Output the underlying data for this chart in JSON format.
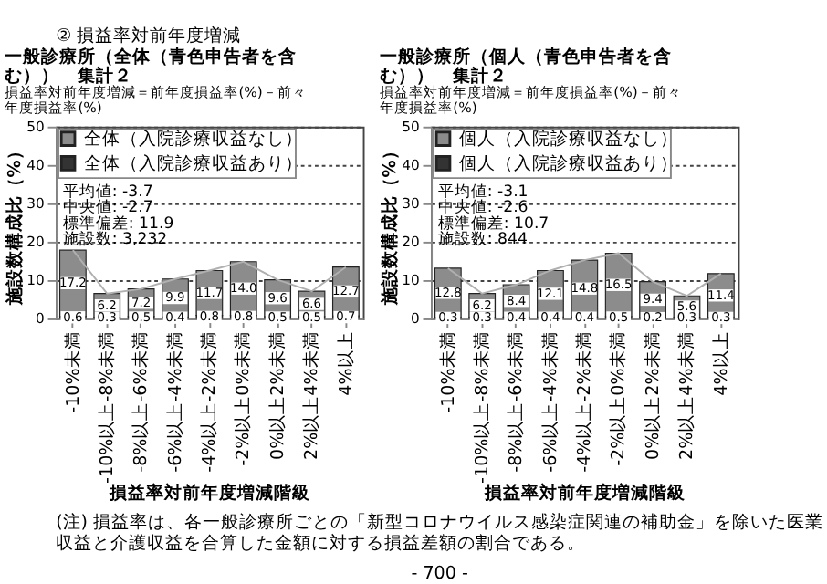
{
  "chart_data": [
    {
      "type": "bar",
      "title": "一般診療所（全体（青色申告者を含む））　集計２",
      "subtitle": "損益率対前年度増減＝前年度損益率(%)－前々年度損益率(%)",
      "xlabel": "損益率対前年度増減階級",
      "ylabel": "施設数構成比（%）",
      "categories": [
        "-10%未満",
        "-10%以上-8%未満",
        "-8%以上-6%未満",
        "-6%以上-4%未満",
        "-4%以上-2%未満",
        "-2%以上0%未満",
        "0%以上2%未満",
        "2%以上4%未満",
        "4%以上"
      ],
      "series": [
        {
          "name": "全体（入院診療収益あり）",
          "color": "#333333",
          "values": [
            0.6,
            0.3,
            0.5,
            0.4,
            0.8,
            0.8,
            0.5,
            0.5,
            0.7
          ],
          "value_labels": [
            "0.6",
            "0.3",
            "0.5",
            "0.4",
            "0.8",
            "0.8",
            "0.5",
            "0.5",
            "0.7"
          ]
        },
        {
          "name": "全体（入院診療収益なし）",
          "color": "#8c8c8c",
          "values": [
            17.2,
            6.2,
            7.2,
            9.9,
            11.7,
            14.0,
            9.6,
            6.6,
            12.7
          ],
          "value_labels": [
            "17.2",
            "6.2",
            "7.2",
            "9.9",
            "11.7",
            "14.0",
            "9.6",
            "6.6",
            "12.7"
          ]
        },
        {
          "type": "line",
          "color": "#b0b0b0",
          "values": [
            17.8,
            6.5,
            7.7,
            10.3,
            12.5,
            14.8,
            10.1,
            7.1,
            13.4
          ]
        }
      ],
      "stacked": true,
      "ylim": [
        0,
        50
      ],
      "yticks": [
        0,
        10,
        20,
        30,
        40,
        50
      ],
      "grid": "y",
      "legend": "top left",
      "annotations": [
        "② 損益率対前年度増減",
        "平均値: -3.7",
        "中央値: -2.7",
        "標準偏差: 11.9",
        "施設数: 3,232"
      ]
    },
    {
      "type": "bar",
      "title": "一般診療所（個人（青色申告者を含む））　集計２",
      "subtitle": "損益率対前年度増減＝前年度損益率(%)－前々年度損益率(%)",
      "xlabel": "損益率対前年度増減階級",
      "ylabel": "施設数構成比（%）",
      "categories": [
        "-10%未満",
        "-10%以上-8%未満",
        "-8%以上-6%未満",
        "-6%以上-4%未満",
        "-4%以上-2%未満",
        "-2%以上0%未満",
        "0%以上2%未満",
        "2%以上4%未満",
        "4%以上"
      ],
      "series": [
        {
          "name": "個人（入院診療収益あり）",
          "color": "#333333",
          "values": [
            0.3,
            0.3,
            0.4,
            0.4,
            0.4,
            0.5,
            0.2,
            0.3,
            0.3
          ],
          "value_labels": [
            "0.3",
            "0.3",
            "0.4",
            "0.4",
            "0.4",
            "0.5",
            "0.2",
            "0.3",
            "0.3"
          ]
        },
        {
          "name": "個人（入院診療収益なし）",
          "color": "#8c8c8c",
          "values": [
            12.8,
            6.2,
            8.4,
            12.1,
            14.8,
            16.5,
            9.4,
            5.6,
            11.4
          ],
          "value_labels": [
            "12.8",
            "6.2",
            "8.4",
            "12.1",
            "14.8",
            "16.5",
            "9.4",
            "5.6",
            "11.4"
          ]
        },
        {
          "type": "line",
          "color": "#b0b0b0",
          "values": [
            13.1,
            6.5,
            8.8,
            12.5,
            15.2,
            17.0,
            9.6,
            5.9,
            11.7
          ]
        }
      ],
      "stacked": true,
      "ylim": [
        0,
        50
      ],
      "yticks": [
        0,
        10,
        20,
        30,
        40,
        50
      ],
      "grid": "y",
      "legend": "top left",
      "annotations": [
        "平均値: -3.1",
        "中央値: -2.6",
        "標準偏差: 10.7",
        "施設数: 844",
        "(注) 損益率は、各一般診療所ごとの「新型コロナウイルス感染症関連の補助金」を除いた医業収益と介護収益を合算した金額に対する損益差額の割合である。",
        "- 700 -"
      ]
    }
  ]
}
